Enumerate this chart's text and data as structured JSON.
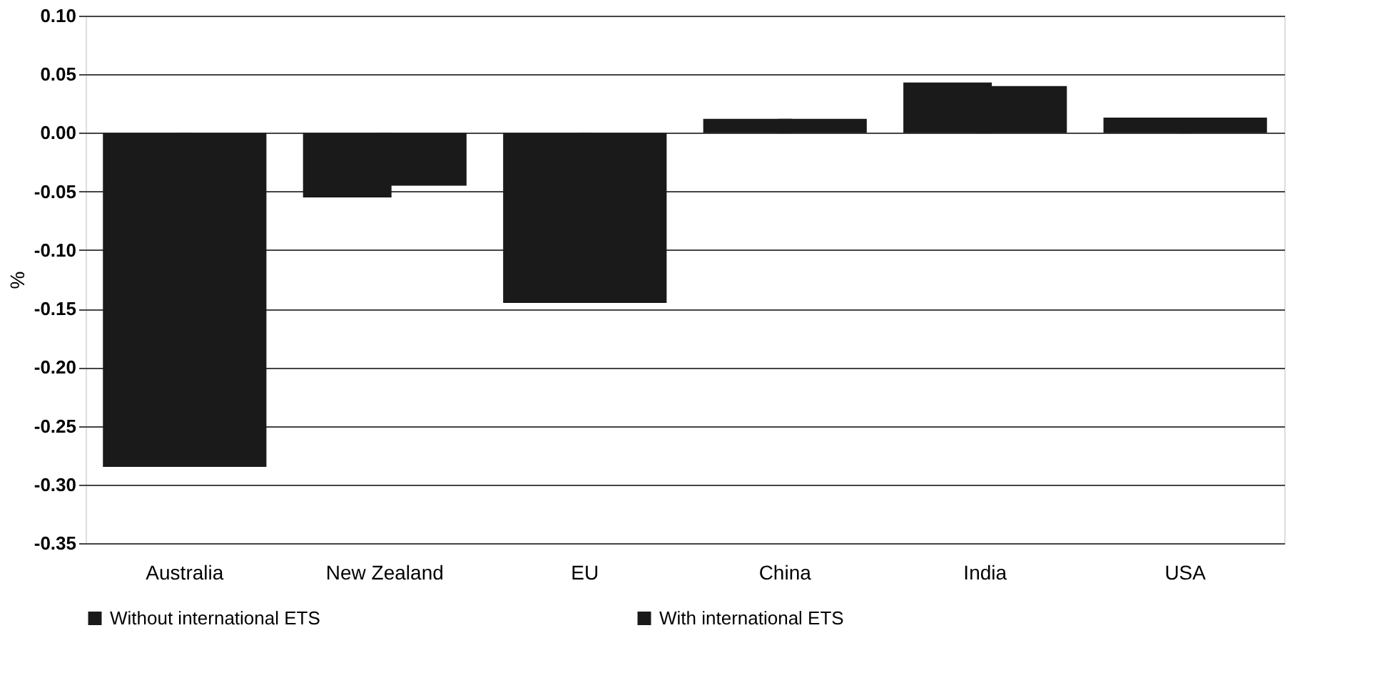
{
  "chart_data": {
    "type": "bar",
    "ylabel": "%",
    "categories": [
      "Australia",
      "New Zealand",
      "EU",
      "China",
      "India",
      "USA"
    ],
    "series": [
      {
        "name": "Without international ETS",
        "color": "#1a1a1a",
        "values": [
          -0.285,
          -0.055,
          -0.145,
          0.012,
          0.043,
          0.013
        ]
      },
      {
        "name": "With international ETS",
        "color": "#1a1a1a",
        "values": [
          -0.285,
          -0.045,
          -0.145,
          0.012,
          0.04,
          0.013
        ]
      }
    ],
    "ylim": [
      -0.35,
      0.1
    ],
    "yticks": [
      {
        "value": -0.35,
        "label": "-0.35"
      },
      {
        "value": -0.3,
        "label": "-0.30"
      },
      {
        "value": -0.25,
        "label": "-0.25"
      },
      {
        "value": -0.2,
        "label": "-0.20"
      },
      {
        "value": -0.15,
        "label": "-0.15"
      },
      {
        "value": -0.1,
        "label": "-0.10"
      },
      {
        "value": -0.05,
        "label": "-0.05"
      },
      {
        "value": 0,
        "label": "0.00"
      },
      {
        "value": 0.05,
        "label": "0.05"
      },
      {
        "value": 0.1,
        "label": "0.10"
      }
    ],
    "grid": "y",
    "legend": "bottom"
  }
}
